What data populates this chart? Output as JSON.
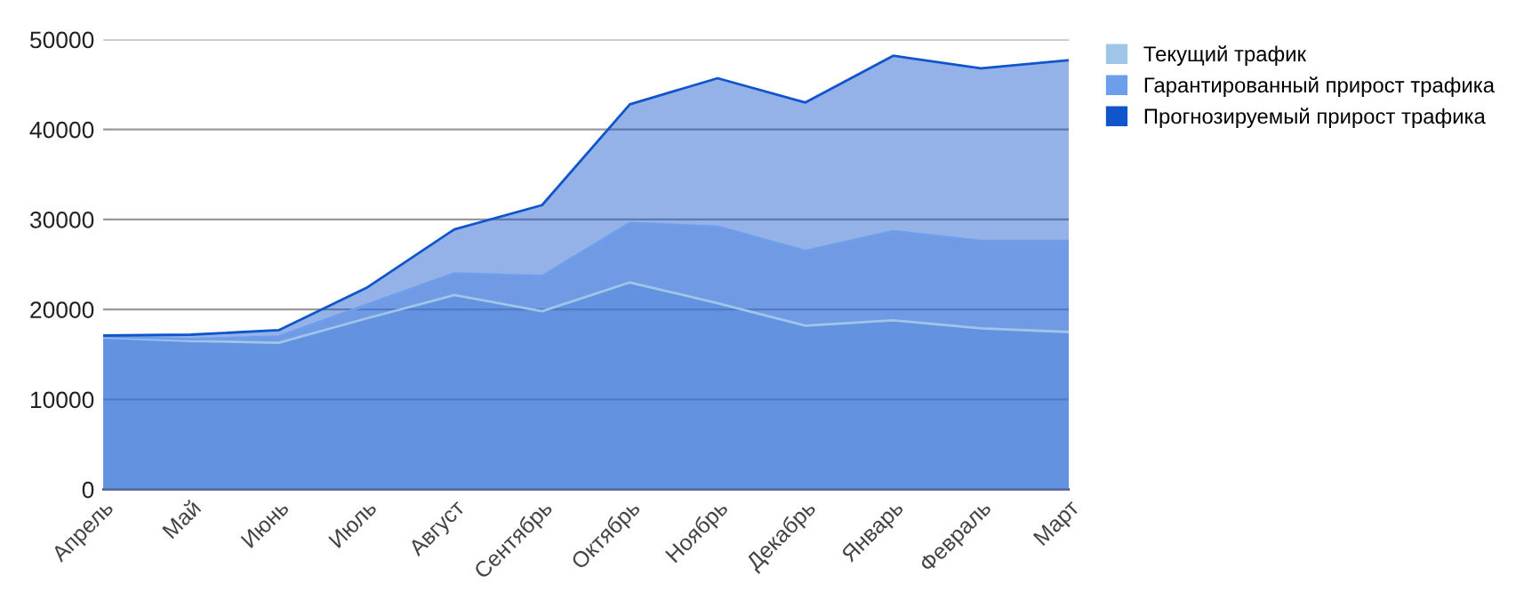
{
  "chart_data": {
    "type": "area",
    "categories": [
      "Апрель",
      "Май",
      "Июнь",
      "Июль",
      "Август",
      "Сентябрь",
      "Октябрь",
      "Ноябрь",
      "Декабрь",
      "Январь",
      "Февраль",
      "Март"
    ],
    "series": [
      {
        "name": "Текущий трафик",
        "color": "#9fc5e8",
        "values": [
          16900,
          16500,
          16300,
          19000,
          21600,
          19800,
          23000,
          20700,
          18200,
          18800,
          17900,
          17500
        ]
      },
      {
        "name": "Гарантированный прирост трафика",
        "color": "#6d9eeb",
        "values": [
          17000,
          16700,
          17000,
          20500,
          24000,
          23700,
          29600,
          29200,
          26500,
          28700,
          27600,
          27600
        ]
      },
      {
        "name": "Прогнозируемый прирост трафика",
        "color": "#1155cc",
        "values": [
          17100,
          17200,
          17700,
          22400,
          28900,
          31600,
          42800,
          45700,
          43000,
          48200,
          46800,
          47700
        ]
      }
    ],
    "ylim": [
      0,
      50000
    ],
    "yticks": [
      0,
      10000,
      20000,
      30000,
      40000,
      50000
    ],
    "grid": "y",
    "legend": "right"
  }
}
